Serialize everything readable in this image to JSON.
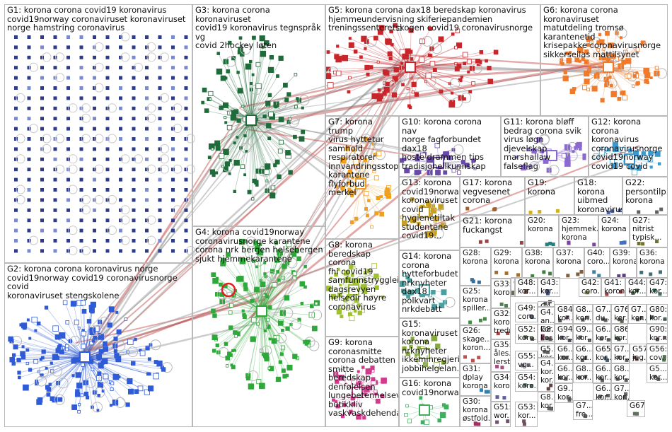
{
  "groups": [
    {
      "id": "G1",
      "label": "G1: korona corona covid19 koronavirus\ncovid19norway coronaviruset koronaviruset\nnorge hamstring coronavirus",
      "color": "#2e3b8a"
    },
    {
      "id": "G2",
      "label": "G2: korona corona koronavirus norge\ncovid19norway covid19 coronavirusnorge covid\nkoronaviruset stengskolene",
      "color": "#2f5bd6"
    },
    {
      "id": "G3",
      "label": "G3: korona corona koronaviruset\ncovid19 koronavirus tegnspråk vg\ncovid 2hockey løten",
      "color": "#1f6b3a"
    },
    {
      "id": "G4",
      "label": "G4: korona covid19norway\ncoronavirusnorge karantene\ncorona nrk bergen helsebergen\nsjukt hjemmekarantene",
      "color": "#2fa83a"
    },
    {
      "id": "G5",
      "label": "G5: korona corona dax18 beredskap koronavirus\nhjemmeundervisning skiferiepandemien\ntreningssenteretskogen covid19 coronavirusnorge",
      "color": "#c8262b"
    },
    {
      "id": "G6",
      "label": "G6: korona corona koronaviruset\nmatutdeling tromsø karantenetid\nkrisepakke coronavirusnorge\nsikkerseilas mattilsynet",
      "color": "#f07a2a"
    },
    {
      "id": "G7",
      "label": "G7: korona trump\nvirus hyttetur\nsamhold\nrespiratorer\ninnvandringsstopp\nkarantene flyforbud\nmerkel",
      "color": "#f0a020"
    },
    {
      "id": "G8",
      "label": "G8: korona\nberedskap corona\nfhi covid19\nsamfunnstryggleik\ndagsrevyen\nhelsedir høyre\ncoronavirus",
      "color": "#9fc030"
    },
    {
      "id": "G9",
      "label": "G9: korona\ncoronasmitte\ncorona debatten\nsmitte beredskap\ndenfølelsen\nlungebetennelsev...\nbutikkliv\nvaskvaskdehenda",
      "color": "#d13a8a"
    },
    {
      "id": "G10",
      "label": "G10: korona corona nav\nnorge fagforbundet dax18\nhoste drammen tips\ntradisjonellkunnskap",
      "color": "#6a4aa8"
    },
    {
      "id": "G11",
      "label": "G11: korona bløff\nbedrag corona svik\nvirus løgn djevelskap\nmarshallaw falseflag",
      "color": "#8a6ad0"
    },
    {
      "id": "G12",
      "label": "G12: korona corona\nkoronavirus\ncoronavirusnorge\ncovid19norway\ncovid19 covid",
      "color": "#3a9ad0"
    },
    {
      "id": "G13",
      "label": "G13: korona\ncovid19norway\nkoronaviruset\ncovid\nhygienetiltak\nstudentene\ncovid19...",
      "color": "#c8a020"
    },
    {
      "id": "G14",
      "label": "G14: korona\ncorona\nhytteforbudet\nnrknyheter\ndax18 polkvart\nnrkdebatt",
      "color": "#4aa0a0"
    },
    {
      "id": "G15",
      "label": "G15:\nkoronaviruset\nkorona\nnrknyheter\nikkeminregjeri...\njobbihelgelan...",
      "color": "#88a840"
    },
    {
      "id": "G16",
      "label": "G16: korona\ncovid19norway",
      "color": "#40b060"
    },
    {
      "id": "G17",
      "label": "G17: korona\nvegvesenet\ncorona",
      "color": "#a06030"
    },
    {
      "id": "G18",
      "label": "G18: korona\nuibmed\nkoronavirus",
      "color": "#5060a0"
    },
    {
      "id": "G19",
      "label": "G19: korona",
      "color": "#d0b020"
    },
    {
      "id": "G20",
      "label": "G20: korona",
      "color": "#208080"
    },
    {
      "id": "G21",
      "label": "G21: korona\nfuckangst",
      "color": "#a04040"
    },
    {
      "id": "G22",
      "label": "G22:\npersontilp...\nkorona",
      "color": "#606060"
    },
    {
      "id": "G23",
      "label": "G23:\nhjemmek...\nkorona",
      "color": "#8040a0"
    },
    {
      "id": "G24",
      "label": "G24:\nkorona",
      "color": "#4070c0"
    },
    {
      "id": "G25",
      "label": "G25:\nkorona\nspiller...",
      "color": "#409040"
    },
    {
      "id": "G26",
      "label": "G26:\nskage...\nkoron...",
      "color": "#c05050"
    },
    {
      "id": "G27",
      "label": "G27:\nnitrist\ntypisk...",
      "color": "#707030"
    },
    {
      "id": "G28",
      "label": "G28:\nkorona",
      "color": "#3070a0"
    },
    {
      "id": "G29",
      "label": "G29:\nkorona",
      "color": "#a07030"
    },
    {
      "id": "G30",
      "label": "G30:\nkorona\nøstfold...",
      "color": "#a03060"
    },
    {
      "id": "G31",
      "label": "G31:\ndplay\nkorona",
      "color": "#3080b0"
    },
    {
      "id": "G32",
      "label": "G32:\nkoro...\ntredr...",
      "color": "#b04040"
    },
    {
      "id": "G33",
      "label": "G33:\nkorona",
      "color": "#508050"
    },
    {
      "id": "G34",
      "label": "G34:\nkoro...",
      "color": "#6060a0"
    },
    {
      "id": "G35",
      "label": "G35:\nåles...\nlerst...",
      "color": "#a05080"
    },
    {
      "id": "G36",
      "label": "G36:\nkorona",
      "color": "#407080"
    },
    {
      "id": "G37",
      "label": "G37:\nkorona",
      "color": "#806040"
    },
    {
      "id": "G38",
      "label": "G38:\nkorona",
      "color": "#408040"
    },
    {
      "id": "G39",
      "label": "G39:\nkorona",
      "color": "#604080"
    },
    {
      "id": "G40",
      "label": "G40:\ncoro...",
      "color": "#4080a0"
    },
    {
      "id": "G41",
      "label": "G41:\nkorona",
      "color": "#a04040"
    },
    {
      "id": "G42",
      "label": "G42:\ncoro...",
      "color": "#808040"
    },
    {
      "id": "G43",
      "label": "G43:\nkor...",
      "color": "#405080"
    },
    {
      "id": "G44",
      "label": "G44:\nkor...",
      "color": "#406040"
    },
    {
      "id": "G45",
      "label": "G4...\nan...\nkor...",
      "color": "#804060"
    },
    {
      "id": "G46",
      "label": "G4...\nkor...\nkor...",
      "color": "#604040"
    },
    {
      "id": "G47",
      "label": "G47:\nkor...",
      "color": "#407060"
    },
    {
      "id": "G48",
      "label": "G48:\nkor...",
      "color": "#705040"
    },
    {
      "id": "G49",
      "label": "G49:\ncoro...",
      "color": "#506070"
    },
    {
      "id": "G50",
      "label": "G50:\nkor...",
      "color": "#607050"
    },
    {
      "id": "G51",
      "label": "G51:\nwor...",
      "color": "#705070"
    },
    {
      "id": "G52",
      "label": "G52:\nkoro...",
      "color": "#506050"
    },
    {
      "id": "G53",
      "label": "G53:\nkor...",
      "color": "#705060"
    },
    {
      "id": "G54",
      "label": "G54:\nkoro...",
      "color": "#507060"
    },
    {
      "id": "G55",
      "label": "G55:\nvg...",
      "color": "#606070"
    },
    {
      "id": "G56",
      "label": "G56:\ncov...",
      "color": "#507050"
    },
    {
      "id": "G57",
      "label": "G57:\njeg...",
      "color": "#705050"
    },
    {
      "id": "G65",
      "label": "G65:\nkor...",
      "color": "#506070"
    },
    {
      "id": "G67",
      "label": "G67...",
      "color": "#607060"
    },
    {
      "id": "G76",
      "label": "G76:\nkor...",
      "color": "#606050"
    },
    {
      "id": "G80",
      "label": "G80:\nkor...",
      "color": "#506060"
    },
    {
      "id": "G84",
      "label": "G84:\nkor...",
      "color": "#605060"
    },
    {
      "id": "G86",
      "label": "G86:\nkor...",
      "color": "#506050"
    },
    {
      "id": "G90",
      "label": "G90:\nkor...",
      "color": "#605050"
    },
    {
      "id": "G94",
      "label": "G94:\nkor...",
      "color": "#505060"
    },
    {
      "id": "G4x1",
      "label": "G4...\nkor...",
      "color": "#606060"
    },
    {
      "id": "G6x1",
      "label": "G6...\nkor...",
      "color": "#606060"
    },
    {
      "id": "G7x1",
      "label": "G7...\ndu...",
      "color": "#606060"
    },
    {
      "id": "G7x2",
      "label": "G7...\nkor...",
      "color": "#606060"
    },
    {
      "id": "G8x1",
      "label": "G8...\nkor...",
      "color": "#606060"
    },
    {
      "id": "G8x2",
      "label": "G8...\nkor...",
      "color": "#606060"
    },
    {
      "id": "G9x1",
      "label": "G9...\nkor...",
      "color": "#606060"
    },
    {
      "id": "G6x2",
      "label": "G6...\nkor...",
      "color": "#606060"
    },
    {
      "id": "G5x1",
      "label": "G5...\nkor...",
      "color": "#606060"
    },
    {
      "id": "G7x3",
      "label": "G7...\nkor...",
      "color": "#606060"
    },
    {
      "id": "G6x3",
      "label": "G6...\nkor...",
      "color": "#606060"
    },
    {
      "id": "G6x4",
      "label": "G6...\nkor...",
      "color": "#606060"
    },
    {
      "id": "G8x3",
      "label": "G8...\nkor...",
      "color": "#606060"
    },
    {
      "id": "G6x5",
      "label": "G6...\nkor...",
      "color": "#606060"
    },
    {
      "id": "G7x4",
      "label": "G7...\nfre...",
      "color": "#606060"
    },
    {
      "id": "G6x6",
      "label": "G6...\nkor...",
      "color": "#606060"
    },
    {
      "id": "G8x4",
      "label": "G8...\nkor...",
      "color": "#606060"
    },
    {
      "id": "G9x2",
      "label": "G9...\nkor...",
      "color": "#606060"
    },
    {
      "id": "G7x5",
      "label": "G7...\nkor...",
      "color": "#606060"
    },
    {
      "id": "G5x2",
      "label": "G5...\nkor...",
      "color": "#606060"
    },
    {
      "id": "G8x5",
      "label": "G8...\nkor...",
      "color": "#606060"
    }
  ]
}
